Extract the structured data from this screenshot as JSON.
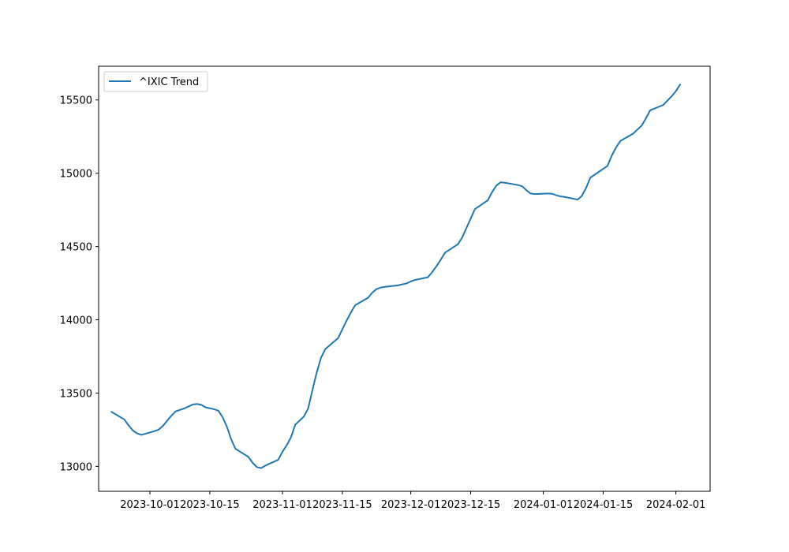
{
  "chart_data": {
    "type": "line",
    "title": "",
    "xlabel": "",
    "ylabel": "",
    "xlim": [
      "2023-09-19",
      "2024-02-09"
    ],
    "ylim": [
      12830,
      15730
    ],
    "x_ticks": [
      "2023-10-01",
      "2023-10-15",
      "2023-11-01",
      "2023-11-15",
      "2023-12-01",
      "2023-12-15",
      "2024-01-01",
      "2024-01-15",
      "2024-02-01"
    ],
    "y_ticks": [
      13000,
      13500,
      14000,
      14500,
      15000,
      15500
    ],
    "legend": {
      "placement": "top-left"
    },
    "grid": false,
    "series": [
      {
        "name": "^IXIC Trend",
        "color": "#1f77b4",
        "points": [
          [
            "2023-09-22",
            13372
          ],
          [
            "2023-09-25",
            13320
          ],
          [
            "2023-09-26",
            13280
          ],
          [
            "2023-09-27",
            13245
          ],
          [
            "2023-09-28",
            13225
          ],
          [
            "2023-09-29",
            13215
          ],
          [
            "2023-10-02",
            13240
          ],
          [
            "2023-10-03",
            13250
          ],
          [
            "2023-10-04",
            13275
          ],
          [
            "2023-10-05",
            13310
          ],
          [
            "2023-10-06",
            13345
          ],
          [
            "2023-10-07",
            13375
          ],
          [
            "2023-10-09",
            13395
          ],
          [
            "2023-10-10",
            13408
          ],
          [
            "2023-10-11",
            13422
          ],
          [
            "2023-10-12",
            13426
          ],
          [
            "2023-10-13",
            13420
          ],
          [
            "2023-10-14",
            13403
          ],
          [
            "2023-10-16",
            13390
          ],
          [
            "2023-10-17",
            13380
          ],
          [
            "2023-10-18",
            13335
          ],
          [
            "2023-10-19",
            13270
          ],
          [
            "2023-10-20",
            13185
          ],
          [
            "2023-10-21",
            13120
          ],
          [
            "2023-10-24",
            13065
          ],
          [
            "2023-10-25",
            13025
          ],
          [
            "2023-10-26",
            12995
          ],
          [
            "2023-10-27",
            12988
          ],
          [
            "2023-10-28",
            13005
          ],
          [
            "2023-10-31",
            13045
          ],
          [
            "2023-11-01",
            13100
          ],
          [
            "2023-11-02",
            13145
          ],
          [
            "2023-11-03",
            13200
          ],
          [
            "2023-11-04",
            13285
          ],
          [
            "2023-11-06",
            13340
          ],
          [
            "2023-11-07",
            13395
          ],
          [
            "2023-11-08",
            13520
          ],
          [
            "2023-11-09",
            13640
          ],
          [
            "2023-11-10",
            13740
          ],
          [
            "2023-11-11",
            13800
          ],
          [
            "2023-11-14",
            13875
          ],
          [
            "2023-11-15",
            13935
          ],
          [
            "2023-11-16",
            13995
          ],
          [
            "2023-11-17",
            14050
          ],
          [
            "2023-11-18",
            14100
          ],
          [
            "2023-11-21",
            14150
          ],
          [
            "2023-11-22",
            14185
          ],
          [
            "2023-11-23",
            14210
          ],
          [
            "2023-11-24",
            14220
          ],
          [
            "2023-11-25",
            14225
          ],
          [
            "2023-11-28",
            14235
          ],
          [
            "2023-11-30",
            14248
          ],
          [
            "2023-12-01",
            14262
          ],
          [
            "2023-12-02",
            14272
          ],
          [
            "2023-12-05",
            14290
          ],
          [
            "2023-12-06",
            14325
          ],
          [
            "2023-12-07",
            14365
          ],
          [
            "2023-12-08",
            14410
          ],
          [
            "2023-12-09",
            14458
          ],
          [
            "2023-12-12",
            14515
          ],
          [
            "2023-12-13",
            14560
          ],
          [
            "2023-12-14",
            14625
          ],
          [
            "2023-12-15",
            14690
          ],
          [
            "2023-12-16",
            14755
          ],
          [
            "2023-12-19",
            14815
          ],
          [
            "2023-12-20",
            14870
          ],
          [
            "2023-12-21",
            14915
          ],
          [
            "2023-12-22",
            14938
          ],
          [
            "2023-12-23",
            14935
          ],
          [
            "2023-12-26",
            14920
          ],
          [
            "2023-12-27",
            14912
          ],
          [
            "2023-12-28",
            14885
          ],
          [
            "2023-12-29",
            14862
          ],
          [
            "2023-12-30",
            14858
          ],
          [
            "2024-01-02",
            14862
          ],
          [
            "2024-01-03",
            14860
          ],
          [
            "2024-01-04",
            14850
          ],
          [
            "2024-01-05",
            14842
          ],
          [
            "2024-01-06",
            14838
          ],
          [
            "2024-01-09",
            14820
          ],
          [
            "2024-01-10",
            14845
          ],
          [
            "2024-01-11",
            14900
          ],
          [
            "2024-01-12",
            14970
          ],
          [
            "2024-01-16",
            15050
          ],
          [
            "2024-01-17",
            15120
          ],
          [
            "2024-01-18",
            15175
          ],
          [
            "2024-01-19",
            15220
          ],
          [
            "2024-01-22",
            15270
          ],
          [
            "2024-01-23",
            15298
          ],
          [
            "2024-01-24",
            15325
          ],
          [
            "2024-01-25",
            15375
          ],
          [
            "2024-01-26",
            15430
          ],
          [
            "2024-01-29",
            15465
          ],
          [
            "2024-01-30",
            15495
          ],
          [
            "2024-01-31",
            15525
          ],
          [
            "2024-02-01",
            15560
          ],
          [
            "2024-02-02",
            15605
          ]
        ]
      }
    ]
  }
}
